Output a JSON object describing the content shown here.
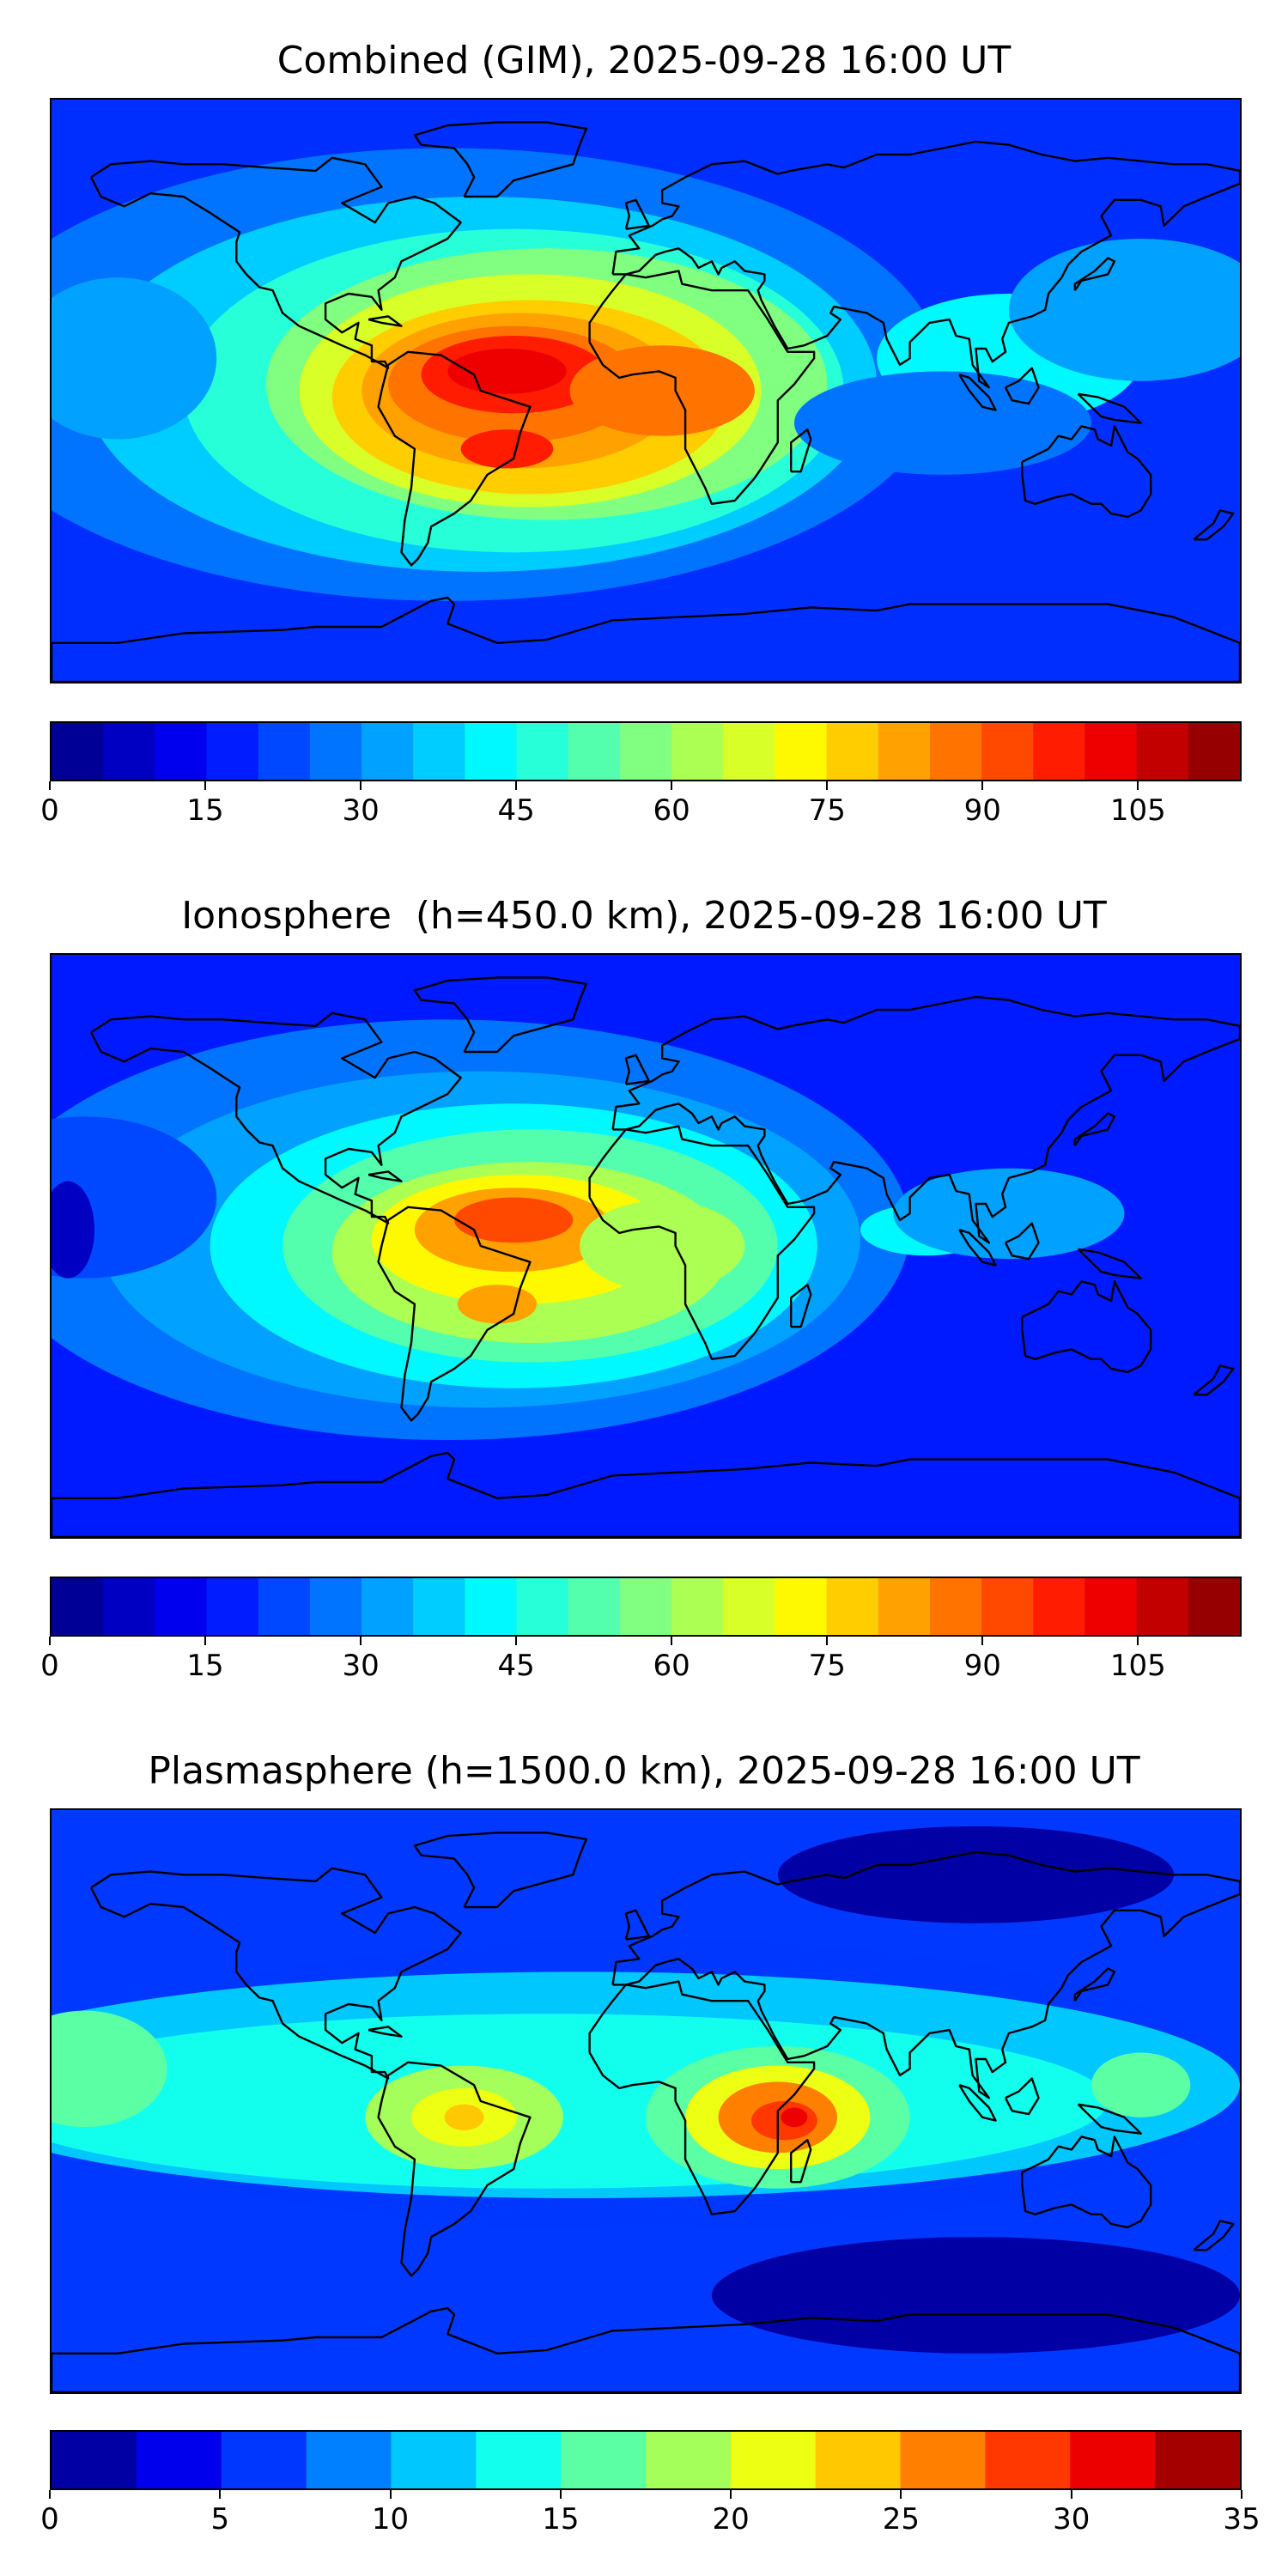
{
  "panels": [
    {
      "title": "Combined (GIM), 2025-09-28 16:00 UT",
      "colorbar": {
        "min": 0,
        "max": 115,
        "step": 5,
        "ticks": [
          0,
          15,
          30,
          45,
          60,
          75,
          90,
          105
        ]
      }
    },
    {
      "title": "Ionosphere  (h=450.0 km), 2025-09-28 16:00 UT",
      "colorbar": {
        "min": 0,
        "max": 115,
        "step": 5,
        "ticks": [
          0,
          15,
          30,
          45,
          60,
          75,
          90,
          105
        ]
      }
    },
    {
      "title": "Plasmasphere (h=1500.0 km), 2025-09-28 16:00 UT",
      "colorbar": {
        "min": 0,
        "max": 35,
        "step": 2.5,
        "ticks": [
          0,
          5,
          10,
          15,
          20,
          25,
          30,
          35
        ]
      }
    }
  ],
  "chart_data": [
    {
      "type": "heatmap",
      "title": "Combined (GIM), 2025-09-28 16:00 UT",
      "colormap": "jet",
      "levels": {
        "min": 0,
        "max": 115,
        "step": 5
      },
      "colorbar_ticks": [
        0,
        15,
        30,
        45,
        60,
        75,
        90,
        105
      ],
      "features": [
        {
          "region": "northern tropical Atlantic / northern South America",
          "lon": -40,
          "lat": 5,
          "value": 108
        },
        {
          "region": "southern Brazil",
          "lon": -45,
          "lat": -18,
          "value": 95
        },
        {
          "region": "western Africa",
          "lon": 5,
          "lat": 0,
          "value": 85
        },
        {
          "region": "southeast Asia",
          "lon": 110,
          "lat": 10,
          "value": 40
        },
        {
          "region": "high northern latitudes",
          "lon": 60,
          "lat": 70,
          "value": 12
        },
        {
          "region": "high southern latitudes",
          "lon": 120,
          "lat": -60,
          "value": 10
        }
      ]
    },
    {
      "type": "heatmap",
      "title": "Ionosphere  (h=450.0 km), 2025-09-28 16:00 UT",
      "colormap": "jet",
      "levels": {
        "min": 0,
        "max": 115,
        "step": 5
      },
      "colorbar_ticks": [
        0,
        15,
        30,
        45,
        60,
        75,
        90,
        105
      ],
      "features": [
        {
          "region": "northern South America / Atlantic",
          "lon": -40,
          "lat": 8,
          "value": 92
        },
        {
          "region": "southern Brazil",
          "lon": -45,
          "lat": -18,
          "value": 80
        },
        {
          "region": "equatorial Africa",
          "lon": 10,
          "lat": 0,
          "value": 65
        },
        {
          "region": "Indian Ocean crest",
          "lon": 85,
          "lat": 5,
          "value": 40
        },
        {
          "region": "high northern latitudes",
          "lon": 80,
          "lat": 65,
          "value": 10
        },
        {
          "region": "high southern latitudes",
          "lon": 120,
          "lat": -55,
          "value": 8
        }
      ]
    },
    {
      "type": "heatmap",
      "title": "Plasmasphere (h=1500.0 km), 2025-09-28 16:00 UT",
      "colormap": "jet",
      "levels": {
        "min": 0,
        "max": 35,
        "step": 2.5
      },
      "colorbar_ticks": [
        0,
        5,
        10,
        15,
        20,
        25,
        30,
        35
      ],
      "features": [
        {
          "region": "East Africa",
          "lon": 40,
          "lat": -5,
          "value": 30
        },
        {
          "region": "South America",
          "lon": -55,
          "lat": -5,
          "value": 22
        },
        {
          "region": "central Pacific",
          "lon": -170,
          "lat": 10,
          "value": 16
        },
        {
          "region": "western Pacific",
          "lon": 150,
          "lat": 5,
          "value": 17
        },
        {
          "region": "high northern latitudes",
          "lon": 100,
          "lat": 70,
          "value": 3
        },
        {
          "region": "high southern latitudes",
          "lon": 100,
          "lat": -60,
          "value": 3
        }
      ]
    }
  ]
}
